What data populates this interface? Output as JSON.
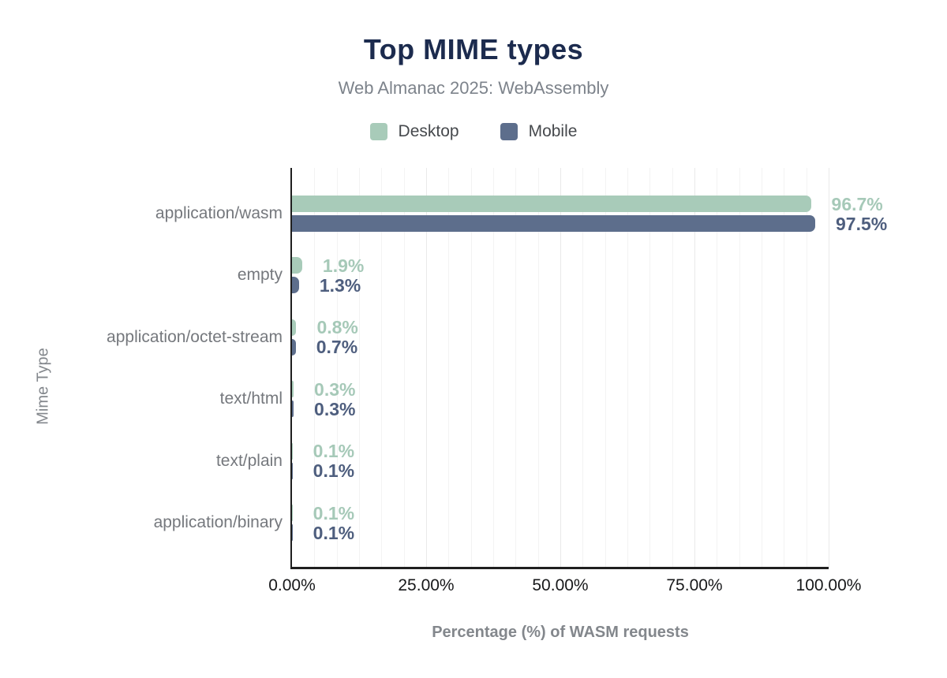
{
  "header": {
    "title": "Top MIME types",
    "subtitle": "Web Almanac 2025: WebAssembly"
  },
  "colors": {
    "title": "#1c2b4e",
    "subtitle": "#7d838b",
    "desktop": "#a8cbb9",
    "mobile": "#5d6e8c",
    "desktop_value": "#a6c9b8",
    "mobile_value": "#4e5e7e",
    "category_label": "#75787d",
    "tick_label": "#17181a",
    "axis_title": "#83878c",
    "axis_line": "#1f1f1f"
  },
  "chart_data": {
    "type": "bar",
    "orientation": "horizontal",
    "title": "Top MIME types",
    "subtitle": "Web Almanac 2025: WebAssembly",
    "xlabel": "Percentage (%) of WASM requests",
    "ylabel": "Mime Type",
    "xlim": [
      0,
      100
    ],
    "grid": {
      "show_vertical": true,
      "minor_divisions_per_major": 6,
      "major_interval_pct": 25
    },
    "legend_position": "top",
    "x_ticks": [
      {
        "value": 0,
        "label": "0.00%"
      },
      {
        "value": 25,
        "label": "25.00%"
      },
      {
        "value": 50,
        "label": "50.00%"
      },
      {
        "value": 75,
        "label": "75.00%"
      },
      {
        "value": 100,
        "label": "100.00%"
      }
    ],
    "categories": [
      "application/wasm",
      "empty",
      "application/octet-stream",
      "text/html",
      "text/plain",
      "application/binary"
    ],
    "series": [
      {
        "name": "Desktop",
        "color": "#a8cbb9",
        "value_color": "#a6c9b8",
        "values": [
          96.7,
          1.9,
          0.8,
          0.3,
          0.1,
          0.1
        ],
        "labels": [
          "96.7%",
          "1.9%",
          "0.8%",
          "0.3%",
          "0.1%",
          "0.1%"
        ]
      },
      {
        "name": "Mobile",
        "color": "#5d6e8c",
        "value_color": "#4e5e7e",
        "values": [
          97.5,
          1.3,
          0.7,
          0.3,
          0.1,
          0.1
        ],
        "labels": [
          "97.5%",
          "1.3%",
          "0.7%",
          "0.3%",
          "0.1%",
          "0.1%"
        ]
      }
    ]
  }
}
